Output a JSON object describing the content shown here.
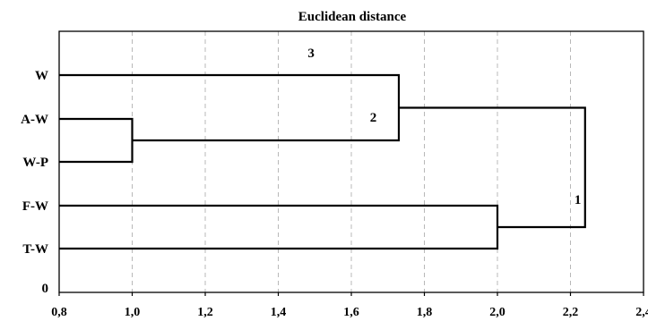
{
  "chart_data": {
    "type": "dendrogram",
    "title": "Euclidean distance",
    "xlim": [
      0.8,
      2.4
    ],
    "x_ticks": [
      "0,8",
      "1,0",
      "1,2",
      "1,4",
      "1,6",
      "1,8",
      "2,0",
      "2,2",
      "2,4"
    ],
    "x_tick_values": [
      0.8,
      1.0,
      1.2,
      1.4,
      1.6,
      1.8,
      2.0,
      2.2,
      2.4
    ],
    "grid": "vertical dashed",
    "leaves": [
      "W",
      "A-W",
      "W-P",
      "F-W",
      "T-W",
      "0"
    ],
    "merges": [
      {
        "items": [
          "A-W",
          "W-P"
        ],
        "distance": 1.0
      },
      {
        "items": [
          "W",
          "A-W + W-P"
        ],
        "distance": 1.73,
        "label": "2"
      },
      {
        "items": [
          "F-W",
          "T-W"
        ],
        "distance": 2.0
      },
      {
        "items": [
          "W + A-W + W-P",
          "F-W + T-W"
        ],
        "distance": 2.24,
        "label": "1"
      }
    ],
    "annotations": [
      {
        "text": "3",
        "x": 1.49
      },
      {
        "text": "2",
        "x": 1.66
      },
      {
        "text": "1",
        "x": 2.22
      }
    ]
  }
}
